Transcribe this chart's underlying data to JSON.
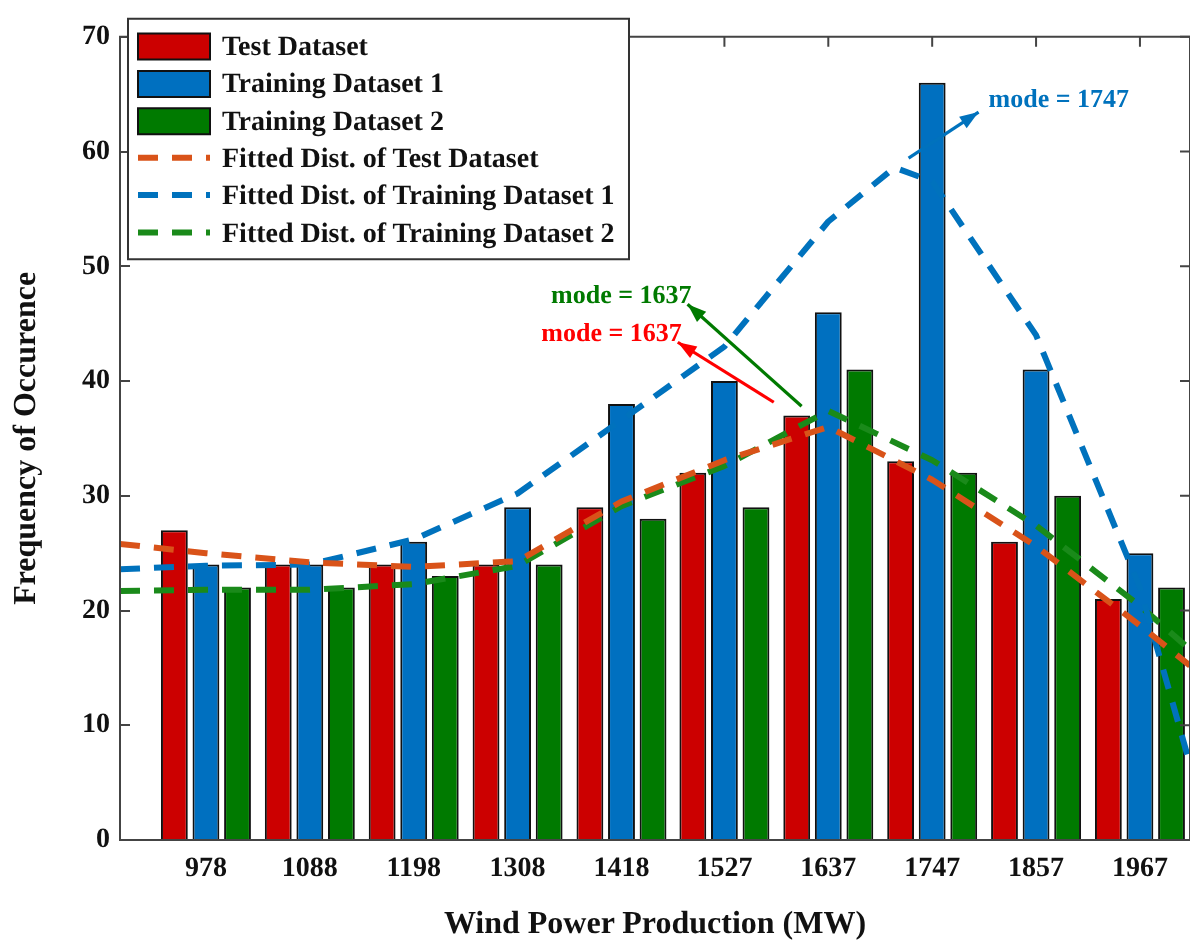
{
  "chart_data": {
    "type": "bar",
    "xlabel": "Wind Power Production (MW)",
    "ylabel": "Frequency of Occurence",
    "x": [
      978,
      1088,
      1198,
      1308,
      1418,
      1527,
      1637,
      1747,
      1857,
      1967
    ],
    "xlim": [
      887,
      2020
    ],
    "xticks": [
      978,
      1088,
      1198,
      1308,
      1418,
      1527,
      1637,
      1747,
      1857,
      1967
    ],
    "ylim": [
      0,
      70
    ],
    "yticks": [
      0,
      10,
      20,
      30,
      40,
      50,
      60,
      70
    ],
    "grid": false,
    "legend": "top left",
    "series": [
      {
        "name": "Test Dataset",
        "color": "#cc0000",
        "values": [
          27,
          24,
          24,
          24,
          29,
          32,
          37,
          33,
          26,
          21
        ]
      },
      {
        "name": "Training Dataset 1",
        "color": "#0070c0",
        "values": [
          24,
          24,
          26,
          29,
          38,
          40,
          46,
          66,
          41,
          25
        ]
      },
      {
        "name": "Training Dataset 2",
        "color": "#007a00",
        "values": [
          22,
          22,
          23,
          24,
          28,
          29,
          41,
          32,
          30,
          22
        ]
      },
      {
        "name": "Fitted Dist. of Test Dataset",
        "type": "line",
        "line_style": "dashed",
        "marker": "none",
        "color": "#d95319",
        "x": [
          887,
          978,
          1088,
          1198,
          1308,
          1418,
          1527,
          1637,
          1747,
          1857,
          1967,
          2020
        ],
        "values": [
          25.8,
          25,
          24.2,
          23.8,
          24.3,
          29.5,
          33.1,
          36,
          31.4,
          25.6,
          18.7,
          15.2
        ]
      },
      {
        "name": "Fitted Dist. of Training Dataset 1",
        "type": "line",
        "line_style": "dashed",
        "marker": "none",
        "color": "#0072bd",
        "x": [
          887,
          978,
          1088,
          1198,
          1308,
          1418,
          1527,
          1637,
          1707,
          1747,
          1857,
          1967,
          2020
        ],
        "values": [
          23.6,
          23.9,
          24,
          26.2,
          30.2,
          36.6,
          43,
          53.9,
          58.6,
          57.4,
          44,
          22,
          6.6
        ]
      },
      {
        "name": "Fitted Dist. of Training Dataset 2",
        "type": "line",
        "line_style": "dashed",
        "marker": "none",
        "color": "#1a8a1a",
        "x": [
          887,
          978,
          1088,
          1198,
          1308,
          1418,
          1527,
          1637,
          1747,
          1857,
          1967,
          2020
        ],
        "values": [
          21.7,
          21.8,
          21.8,
          22.3,
          23.9,
          29.1,
          32.6,
          37.4,
          33.1,
          27.4,
          20.4,
          16.6
        ]
      }
    ],
    "annotations": [
      "mode = 1747",
      "mode = 1637",
      "mode = 1637"
    ]
  }
}
